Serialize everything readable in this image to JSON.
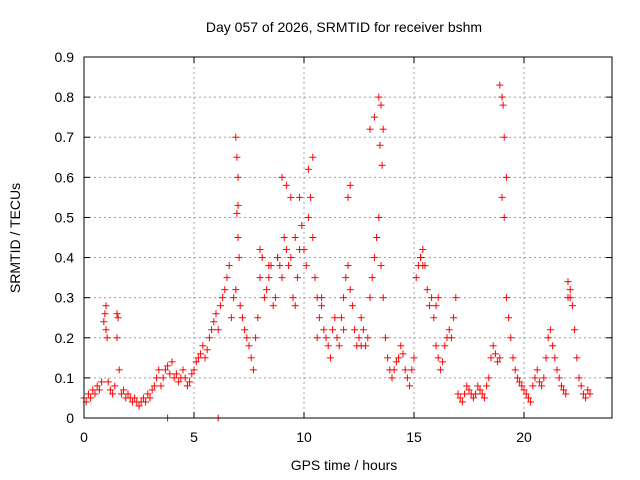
{
  "chart_data": {
    "type": "scatter",
    "title": "Day 057 of 2026, SRMTID for receiver bshm",
    "xlabel": "GPS time / hours",
    "ylabel": "SRMTID / TECUs",
    "xlim": [
      0,
      24
    ],
    "ylim": [
      0,
      0.9
    ],
    "xticks": [
      0,
      5,
      10,
      15,
      20
    ],
    "xtick_labels": [
      "0",
      "5",
      "10",
      "15",
      "20"
    ],
    "yticks": [
      0,
      0.1,
      0.2,
      0.3,
      0.4,
      0.5,
      0.6,
      0.7,
      0.8,
      0.9
    ],
    "ytick_labels": [
      "0",
      "0.1",
      "0.2",
      "0.3",
      "0.4",
      "0.5",
      "0.6",
      "0.7",
      "0.8",
      "0.9"
    ],
    "grid": true,
    "marker": "plus",
    "color": "#ff0000",
    "series": [
      {
        "name": "SRMTID",
        "x": [
          0.0,
          0.1,
          0.2,
          0.3,
          0.4,
          0.5,
          0.6,
          0.7,
          0.8,
          0.9,
          0.95,
          1.0,
          1.05,
          1.1,
          1.2,
          1.3,
          1.4,
          1.5,
          1.55,
          1.6,
          1.7,
          1.8,
          1.9,
          2.0,
          2.1,
          2.2,
          2.3,
          2.4,
          2.5,
          2.6,
          2.7,
          2.8,
          2.9,
          3.0,
          3.1,
          3.2,
          3.3,
          3.4,
          3.5,
          3.6,
          3.7,
          3.8,
          3.9,
          4.0,
          4.1,
          4.2,
          4.3,
          4.4,
          4.5,
          4.6,
          4.7,
          4.8,
          4.9,
          5.0,
          5.1,
          5.2,
          5.3,
          5.4,
          5.5,
          5.6,
          5.7,
          5.8,
          5.9,
          6.0,
          6.1,
          6.2,
          6.3,
          6.4,
          6.5,
          6.6,
          6.7,
          6.8,
          6.9,
          7.0,
          7.05,
          7.1,
          7.2,
          7.3,
          7.4,
          7.5,
          7.6,
          7.7,
          7.8,
          7.9,
          8.0,
          8.1,
          8.2,
          8.3,
          8.4,
          8.5,
          8.6,
          8.7,
          8.8,
          8.9,
          9.0,
          9.1,
          9.2,
          9.3,
          9.4,
          9.5,
          9.6,
          9.7,
          9.8,
          9.9,
          10.0,
          10.1,
          10.2,
          10.3,
          10.4,
          10.5,
          10.6,
          10.7,
          10.8,
          10.9,
          11.0,
          11.1,
          11.2,
          11.3,
          11.4,
          11.5,
          11.6,
          11.7,
          11.8,
          11.9,
          12.0,
          12.1,
          12.2,
          12.3,
          12.4,
          12.5,
          12.6,
          12.7,
          12.8,
          12.9,
          13.0,
          13.1,
          13.2,
          13.3,
          13.4,
          13.5,
          13.6,
          13.7,
          13.8,
          13.9,
          14.0,
          14.1,
          14.2,
          14.3,
          14.4,
          14.5,
          14.6,
          14.7,
          14.8,
          14.9,
          15.0,
          15.1,
          15.2,
          15.3,
          15.4,
          15.5,
          15.6,
          15.7,
          15.8,
          15.9,
          16.0,
          16.1,
          16.2,
          16.3,
          16.4,
          16.5,
          16.6,
          16.7,
          16.8,
          16.9,
          17.0,
          17.1,
          17.2,
          17.3,
          17.4,
          17.5,
          17.6,
          17.7,
          17.8,
          17.9,
          18.0,
          18.1,
          18.2,
          18.3,
          18.4,
          18.5,
          18.6,
          18.7,
          18.8,
          18.9,
          19.0,
          19.1,
          19.2,
          19.3,
          19.4,
          19.5,
          19.6,
          19.7,
          19.8,
          19.9,
          20.0,
          20.1,
          20.2,
          20.3,
          20.4,
          20.5,
          20.6,
          20.7,
          20.8,
          20.9,
          21.0,
          21.1,
          21.2,
          21.3,
          21.4,
          21.5,
          21.6,
          21.7,
          21.8,
          21.9,
          22.0,
          22.1,
          22.2,
          22.3,
          22.4,
          22.5,
          22.6,
          22.7,
          22.8,
          22.9,
          23.0,
          1.0,
          1.5,
          6.9,
          6.95,
          7.0,
          9.0,
          9.2,
          9.4,
          10.2,
          10.4,
          12.0,
          12.1,
          13.0,
          13.2,
          13.4,
          13.5,
          13.6,
          18.9,
          19.0,
          19.05,
          19.1,
          19.2,
          22.0,
          22.1,
          7.0,
          6.95,
          13.55,
          13.45,
          15.3,
          15.4,
          16.0,
          16.1,
          8.0,
          8.4,
          8.8,
          9.6,
          9.8,
          10.6,
          10.8,
          11.8,
          12.6,
          3.8,
          6.1
        ],
        "y": [
          0.05,
          0.04,
          0.06,
          0.05,
          0.07,
          0.06,
          0.08,
          0.07,
          0.09,
          0.24,
          0.26,
          0.22,
          0.2,
          0.09,
          0.07,
          0.06,
          0.08,
          0.2,
          0.25,
          0.12,
          0.06,
          0.07,
          0.05,
          0.06,
          0.05,
          0.04,
          0.05,
          0.04,
          0.03,
          0.04,
          0.05,
          0.04,
          0.06,
          0.05,
          0.07,
          0.08,
          0.1,
          0.12,
          0.08,
          0.1,
          0.12,
          0.13,
          0.11,
          0.14,
          0.1,
          0.11,
          0.09,
          0.1,
          0.12,
          0.1,
          0.08,
          0.09,
          0.11,
          0.12,
          0.14,
          0.15,
          0.16,
          0.18,
          0.15,
          0.17,
          0.2,
          0.22,
          0.24,
          0.26,
          0.22,
          0.28,
          0.3,
          0.32,
          0.35,
          0.38,
          0.25,
          0.3,
          0.32,
          0.45,
          0.4,
          0.28,
          0.25,
          0.22,
          0.2,
          0.18,
          0.15,
          0.12,
          0.2,
          0.25,
          0.35,
          0.4,
          0.3,
          0.32,
          0.35,
          0.38,
          0.28,
          0.3,
          0.4,
          0.38,
          0.35,
          0.45,
          0.42,
          0.38,
          0.4,
          0.3,
          0.28,
          0.35,
          0.55,
          0.48,
          0.42,
          0.38,
          0.5,
          0.55,
          0.45,
          0.35,
          0.2,
          0.25,
          0.3,
          0.22,
          0.2,
          0.18,
          0.15,
          0.22,
          0.25,
          0.2,
          0.18,
          0.25,
          0.3,
          0.35,
          0.38,
          0.32,
          0.28,
          0.22,
          0.18,
          0.2,
          0.25,
          0.22,
          0.18,
          0.2,
          0.3,
          0.35,
          0.4,
          0.45,
          0.5,
          0.38,
          0.3,
          0.2,
          0.15,
          0.12,
          0.1,
          0.12,
          0.14,
          0.15,
          0.18,
          0.16,
          0.12,
          0.1,
          0.08,
          0.12,
          0.15,
          0.35,
          0.38,
          0.4,
          0.42,
          0.38,
          0.32,
          0.28,
          0.3,
          0.25,
          0.18,
          0.15,
          0.12,
          0.14,
          0.18,
          0.2,
          0.22,
          0.2,
          0.25,
          0.3,
          0.06,
          0.05,
          0.04,
          0.06,
          0.08,
          0.07,
          0.06,
          0.05,
          0.06,
          0.08,
          0.07,
          0.06,
          0.05,
          0.08,
          0.1,
          0.15,
          0.18,
          0.16,
          0.14,
          0.15,
          0.55,
          0.5,
          0.3,
          0.25,
          0.2,
          0.15,
          0.12,
          0.1,
          0.09,
          0.08,
          0.07,
          0.06,
          0.05,
          0.04,
          0.08,
          0.1,
          0.12,
          0.09,
          0.08,
          0.1,
          0.15,
          0.2,
          0.22,
          0.18,
          0.15,
          0.12,
          0.1,
          0.08,
          0.07,
          0.06,
          0.3,
          0.32,
          0.28,
          0.22,
          0.15,
          0.1,
          0.08,
          0.06,
          0.05,
          0.07,
          0.06,
          0.28,
          0.26,
          0.7,
          0.65,
          0.6,
          0.6,
          0.58,
          0.55,
          0.62,
          0.65,
          0.55,
          0.58,
          0.72,
          0.75,
          0.8,
          0.78,
          0.72,
          0.83,
          0.8,
          0.78,
          0.7,
          0.6,
          0.34,
          0.3,
          0.53,
          0.51,
          0.63,
          0.68,
          0.4,
          0.38,
          0.28,
          0.3,
          0.42,
          0.38,
          0.4,
          0.45,
          0.42,
          0.3,
          0.28,
          0.22,
          0.18,
          0.0,
          0.0
        ]
      }
    ]
  }
}
